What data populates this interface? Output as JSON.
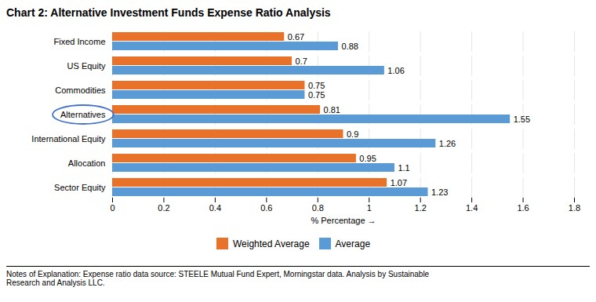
{
  "chart_data": {
    "type": "bar",
    "orientation": "horizontal",
    "title": "Chart 2:  Alternative Investment Funds Expense Ratio Analysis",
    "categories": [
      "Fixed Income",
      "US Equity",
      "Commodities",
      "Alternatives",
      "International Equity",
      "Allocation",
      "Sector Equity"
    ],
    "series": [
      {
        "name": "Weighted Average",
        "color": "#E8722A",
        "values": [
          0.67,
          0.7,
          0.75,
          0.81,
          0.9,
          0.95,
          1.07
        ]
      },
      {
        "name": "Average",
        "color": "#5B9BD5",
        "values": [
          0.88,
          1.06,
          0.75,
          1.55,
          1.26,
          1.1,
          1.23
        ]
      }
    ],
    "xlabel": "% Percentage",
    "xlim": [
      0,
      1.8
    ],
    "xticks": [
      0,
      0.2,
      0.4,
      0.6,
      0.8,
      1,
      1.2,
      1.4,
      1.6,
      1.8
    ],
    "grid": true,
    "data_labels": true,
    "legend": "bottom",
    "highlight": {
      "category": "Alternatives",
      "color": "#4472C4"
    },
    "caption": "Notes of Explanation:  Expense ratio data source:  STEELE Mutual Fund Expert, Morningstar data. Analysis by Sustainable\nResearch and Analysis LLC."
  }
}
